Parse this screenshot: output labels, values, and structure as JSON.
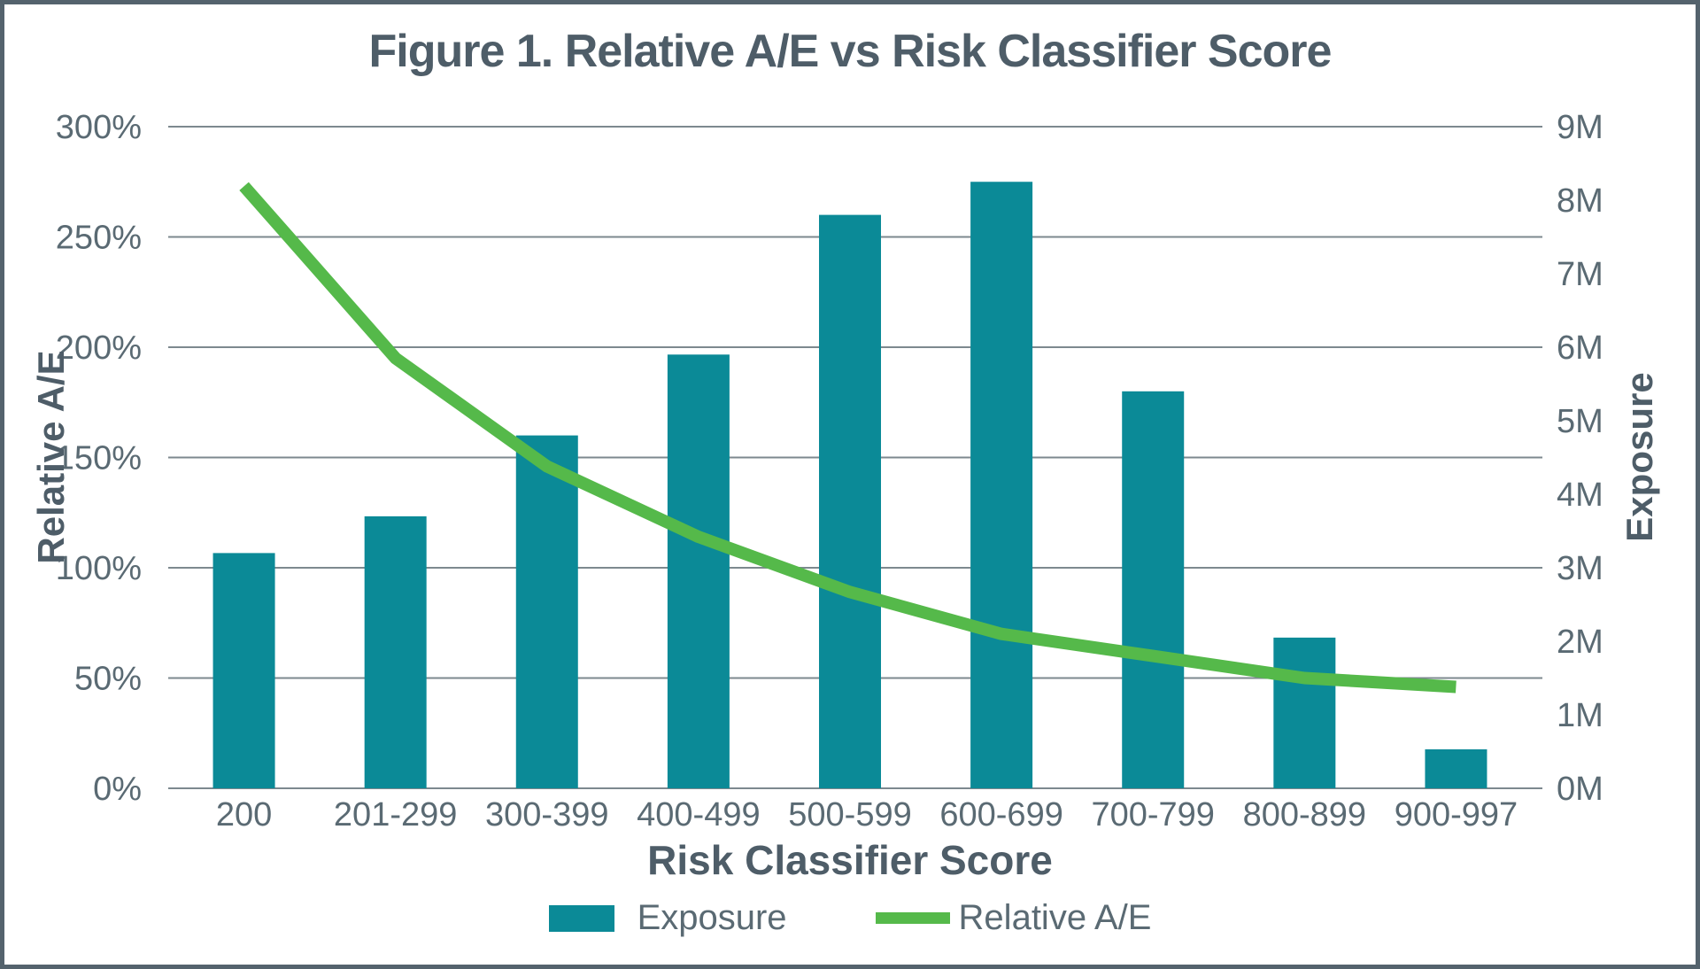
{
  "figure": {
    "title": "Figure 1. Relative A/E vs Risk Classifier Score"
  },
  "chart_data": {
    "type": "combo-bar-line",
    "title": "Figure 1. Relative A/E vs Risk Classifier Score",
    "xlabel": "Risk Classifier Score",
    "categories": [
      "200",
      "201-299",
      "300-399",
      "400-499",
      "500-599",
      "600-699",
      "700-799",
      "800-899",
      "900-997"
    ],
    "series": [
      {
        "name": "Exposure",
        "type": "bar",
        "axis": "right",
        "unit": "M",
        "color": "#0b8a97",
        "values": [
          3.2,
          3.7,
          4.8,
          5.9,
          7.8,
          8.25,
          5.4,
          2.05,
          0.53
        ]
      },
      {
        "name": "Relative A/E",
        "type": "line",
        "axis": "left",
        "unit": "%",
        "color": "#55b94a",
        "values": [
          273,
          195,
          146,
          114,
          89,
          70,
          60,
          50,
          46
        ]
      }
    ],
    "left_axis": {
      "title": "Relative A/E",
      "min": 0,
      "max": 300,
      "tick_step": 50,
      "tick_labels": [
        "0%",
        "50%",
        "100%",
        "150%",
        "200%",
        "250%",
        "300%"
      ]
    },
    "right_axis": {
      "title": "Exposure",
      "min": 0,
      "max": 9,
      "tick_step": 1,
      "tick_labels": [
        "0M",
        "1M",
        "2M",
        "3M",
        "4M",
        "5M",
        "6M",
        "7M",
        "8M",
        "9M"
      ]
    },
    "grid": true,
    "legend_position": "bottom",
    "styles": {
      "bar_color": "#0b8a97",
      "line_color": "#55b94a",
      "grid_color": "#7d898f",
      "text_color": "#5a6a73",
      "title_color": "#4e5d68",
      "border_color": "#54636d",
      "background": "#ffffff"
    }
  }
}
